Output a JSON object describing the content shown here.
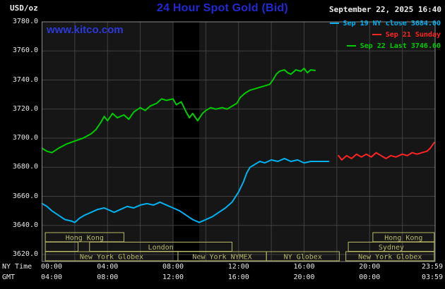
{
  "header": {
    "unit_label": "USD/oz",
    "title": "24 Hour Spot Gold (Bid)",
    "datetime": "September 22, 2025 16:40",
    "watermark": "www.kitco.com"
  },
  "legend": [
    {
      "label": "Sep 19 NY close 3684.00",
      "color": "#00b2f0"
    },
    {
      "label": "Sep 21 Sunday",
      "color": "#ff2424"
    },
    {
      "label": "Sep 22 Last 3746.60",
      "color": "#00cc00"
    }
  ],
  "axes": {
    "y_unit": "USD/oz",
    "y_ticks": [
      "3780.0",
      "3760.0",
      "3740.0",
      "3720.0",
      "3700.0",
      "3680.0",
      "3660.0",
      "3640.0",
      "3620.0"
    ],
    "x_rows": [
      {
        "axis_label": "NY Time",
        "ticks": [
          "00:00",
          "04:00",
          "08:00",
          "12:00",
          "16:00",
          "20:00",
          "23:59"
        ]
      },
      {
        "axis_label": "GMT",
        "ticks": [
          "04:00",
          "08:00",
          "12:00",
          "16:00",
          "20:00",
          "00:00",
          "03:59"
        ]
      }
    ]
  },
  "sessions": [
    {
      "row": 0,
      "label": "Hong Kong",
      "start_hour": 0.2,
      "end_hour": 5.0
    },
    {
      "row": 0,
      "label": "Hong Kong",
      "start_hour": 20.2,
      "end_hour": 23.95
    },
    {
      "row": 1,
      "label": "",
      "start_hour": 0.2,
      "end_hour": 2.2
    },
    {
      "row": 1,
      "label": "London",
      "start_hour": 2.9,
      "end_hour": 11.6
    },
    {
      "row": 1,
      "label": "Sydney",
      "start_hour": 18.7,
      "end_hour": 23.95
    },
    {
      "row": 2,
      "label": "New York Globex",
      "start_hour": 0.2,
      "end_hour": 8.3
    },
    {
      "row": 2,
      "label": "New York NYMEX",
      "start_hour": 8.3,
      "end_hour": 13.7
    },
    {
      "row": 2,
      "label": "NY Globex",
      "start_hour": 13.7,
      "end_hour": 18.15
    },
    {
      "row": 2,
      "label": "New York Globex",
      "start_hour": 18.55,
      "end_hour": 23.95
    }
  ],
  "colors": {
    "page_bg": "#000000",
    "plot_bg": "#161616",
    "band": "#000000",
    "grid": "#404040",
    "border": "#8c8c8c",
    "title_blue": "#2128d6",
    "watermark_blue": "#2d38d8",
    "text_white": "#e8e8e8",
    "session": "#b9b96a"
  },
  "chart_data": {
    "type": "line",
    "title": "24 Hour Spot Gold (Bid)",
    "xlabel": "NY Time (hours)",
    "ylabel": "USD/oz",
    "xlim": [
      0,
      24
    ],
    "ylim": [
      3620,
      3780
    ],
    "y_tick_step": 20,
    "x_grid_step_hours": 2,
    "grid": true,
    "legend_position": "top-right",
    "shaded_band_hours": [
      8.0,
      9.6
    ],
    "series": [
      {
        "name": "Sep 19 NY close 3684.00",
        "color": "#00b2f0",
        "points": [
          [
            0,
            3655
          ],
          [
            0.3,
            3653
          ],
          [
            0.6,
            3650
          ],
          [
            1,
            3647
          ],
          [
            1.4,
            3644
          ],
          [
            1.8,
            3643
          ],
          [
            2,
            3642
          ],
          [
            2.3,
            3645
          ],
          [
            2.6,
            3647
          ],
          [
            3,
            3649
          ],
          [
            3.4,
            3651
          ],
          [
            3.8,
            3652
          ],
          [
            4,
            3651
          ],
          [
            4.4,
            3649
          ],
          [
            4.8,
            3651
          ],
          [
            5.2,
            3653
          ],
          [
            5.6,
            3652
          ],
          [
            6,
            3654
          ],
          [
            6.4,
            3655
          ],
          [
            6.8,
            3654
          ],
          [
            7.2,
            3656
          ],
          [
            7.6,
            3654
          ],
          [
            8,
            3652
          ],
          [
            8.4,
            3650
          ],
          [
            8.8,
            3647
          ],
          [
            9.2,
            3644
          ],
          [
            9.6,
            3642
          ],
          [
            10,
            3644
          ],
          [
            10.4,
            3646
          ],
          [
            10.8,
            3649
          ],
          [
            11.2,
            3652
          ],
          [
            11.6,
            3656
          ],
          [
            12,
            3663
          ],
          [
            12.3,
            3670
          ],
          [
            12.5,
            3676
          ],
          [
            12.7,
            3680
          ],
          [
            13,
            3682
          ],
          [
            13.3,
            3684
          ],
          [
            13.6,
            3683
          ],
          [
            14,
            3685
          ],
          [
            14.4,
            3684
          ],
          [
            14.8,
            3686
          ],
          [
            15.2,
            3684
          ],
          [
            15.6,
            3685
          ],
          [
            16,
            3683
          ],
          [
            16.4,
            3684
          ],
          [
            17,
            3684
          ],
          [
            17.5,
            3684
          ]
        ]
      },
      {
        "name": "Sep 21 Sunday",
        "color": "#ff2424",
        "points": [
          [
            18.1,
            3688
          ],
          [
            18.3,
            3685
          ],
          [
            18.6,
            3688
          ],
          [
            18.9,
            3686
          ],
          [
            19.2,
            3689
          ],
          [
            19.5,
            3687
          ],
          [
            19.8,
            3689
          ],
          [
            20.1,
            3687
          ],
          [
            20.4,
            3690
          ],
          [
            20.7,
            3688
          ],
          [
            21,
            3686
          ],
          [
            21.3,
            3688
          ],
          [
            21.6,
            3687
          ],
          [
            22,
            3689
          ],
          [
            22.3,
            3688
          ],
          [
            22.6,
            3690
          ],
          [
            22.9,
            3689
          ],
          [
            23.2,
            3690
          ],
          [
            23.5,
            3691
          ],
          [
            23.7,
            3693
          ],
          [
            23.95,
            3697
          ]
        ]
      },
      {
        "name": "Sep 22 Last 3746.60",
        "color": "#00cc00",
        "points": [
          [
            0,
            3693
          ],
          [
            0.3,
            3691
          ],
          [
            0.6,
            3690
          ],
          [
            1,
            3693
          ],
          [
            1.5,
            3696
          ],
          [
            2,
            3698
          ],
          [
            2.5,
            3700
          ],
          [
            3,
            3703
          ],
          [
            3.3,
            3706
          ],
          [
            3.6,
            3711
          ],
          [
            3.8,
            3715
          ],
          [
            4,
            3712
          ],
          [
            4.3,
            3717
          ],
          [
            4.6,
            3714
          ],
          [
            5,
            3716
          ],
          [
            5.3,
            3713
          ],
          [
            5.6,
            3718
          ],
          [
            6,
            3721
          ],
          [
            6.3,
            3719
          ],
          [
            6.6,
            3722
          ],
          [
            7,
            3724
          ],
          [
            7.3,
            3727
          ],
          [
            7.6,
            3726
          ],
          [
            8,
            3727
          ],
          [
            8.2,
            3723
          ],
          [
            8.5,
            3725
          ],
          [
            8.8,
            3718
          ],
          [
            9,
            3714
          ],
          [
            9.2,
            3717
          ],
          [
            9.5,
            3712
          ],
          [
            9.8,
            3717
          ],
          [
            10,
            3719
          ],
          [
            10.3,
            3721
          ],
          [
            10.6,
            3720
          ],
          [
            11,
            3721
          ],
          [
            11.3,
            3720
          ],
          [
            11.6,
            3722
          ],
          [
            11.9,
            3724
          ],
          [
            12.1,
            3728
          ],
          [
            12.4,
            3731
          ],
          [
            12.7,
            3733
          ],
          [
            13,
            3734
          ],
          [
            13.3,
            3735
          ],
          [
            13.6,
            3736
          ],
          [
            13.9,
            3737
          ],
          [
            14.1,
            3740
          ],
          [
            14.3,
            3744
          ],
          [
            14.5,
            3746
          ],
          [
            14.8,
            3747
          ],
          [
            15,
            3745
          ],
          [
            15.2,
            3744
          ],
          [
            15.5,
            3747
          ],
          [
            15.8,
            3746
          ],
          [
            16,
            3748
          ],
          [
            16.2,
            3745
          ],
          [
            16.4,
            3747
          ],
          [
            16.67,
            3746.6
          ]
        ]
      }
    ]
  }
}
